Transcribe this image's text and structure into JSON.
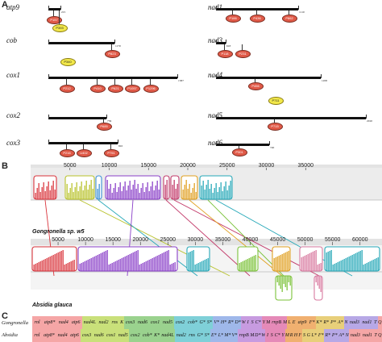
{
  "panels": {
    "a": "A",
    "b": "B",
    "c": "C"
  },
  "genes_left": [
    {
      "name": "atp9",
      "end": "215",
      "insertions": [
        {
          "label": "P157",
          "color": "red"
        },
        {
          "label": "P393",
          "color": "yellow"
        }
      ]
    },
    {
      "name": "cob",
      "end": "1170",
      "insertions": [
        {
          "label": "P823",
          "color": "red"
        },
        {
          "label": "P340",
          "color": "yellow"
        }
      ]
    },
    {
      "name": "cox1",
      "end": "1587",
      "insertions": [
        {
          "label": "P212",
          "color": "red"
        },
        {
          "label": "P410",
          "color": "red"
        },
        {
          "label": "P621",
          "color": "red"
        },
        {
          "label": "P1057",
          "color": "red"
        },
        {
          "label": "P1296",
          "color": "red"
        }
      ]
    },
    {
      "name": "cox2",
      "end": "756",
      "insertions": [
        {
          "label": "P685",
          "color": "red"
        }
      ]
    },
    {
      "name": "cox3",
      "end": "810",
      "insertions": [
        {
          "label": "P216",
          "color": "red"
        },
        {
          "label": "U402",
          "color": "red"
        },
        {
          "label": "P751",
          "color": "red"
        }
      ]
    }
  ],
  "genes_right": [
    {
      "name": "nad1",
      "end": "1110",
      "insertions": [
        {
          "label": "P166",
          "color": "red"
        },
        {
          "label": "P436",
          "color": "red"
        },
        {
          "label": "P862",
          "color": "red"
        }
      ]
    },
    {
      "name": "nad3",
      "end": "618",
      "insertions": [
        {
          "label": "P118",
          "color": "red"
        },
        {
          "label": "P231",
          "color": "red"
        }
      ]
    },
    {
      "name": "nad4",
      "end": "1458",
      "insertions": [
        {
          "label": "P456",
          "color": "red"
        },
        {
          "label": "P711",
          "color": "yellow"
        }
      ]
    },
    {
      "name": "nad5",
      "end": "2010",
      "insertions": [
        {
          "label": "P715",
          "color": "red"
        }
      ]
    },
    {
      "name": "nad6",
      "end": "720",
      "insertions": [
        {
          "label": "P301",
          "color": "red"
        }
      ]
    }
  ],
  "alignment": {
    "top_ticks": [
      "5000",
      "10000",
      "15000",
      "20000",
      "25000",
      "30000",
      "35000"
    ],
    "bottom_ticks": [
      "5000",
      "10000",
      "15000",
      "20000",
      "25000",
      "30000",
      "35000",
      "40000",
      "45000",
      "50000",
      "55000",
      "60000"
    ],
    "genome1": "Gongronella sp. w5",
    "genome2": "Absidia glauca",
    "block_colors": [
      "#d9343c",
      "#b8c22a",
      "#3a8fd6",
      "#8a3fc8",
      "#c23a6a",
      "#e0a020",
      "#7bc23a",
      "#26a8b8",
      "#d87aa0"
    ]
  },
  "gene_order": {
    "rows": [
      {
        "label": "Gongronella",
        "cells": [
          "rnl",
          "atp8*",
          "nad4",
          "atp6",
          "nad4L",
          "nad2",
          "rns",
          "K",
          "cox3",
          "nad6",
          "cox1",
          "nad5",
          "cox2",
          "cob*",
          "G*",
          "S*",
          "V*",
          "H*",
          "R*",
          "D*",
          "W",
          "I",
          "S",
          "C*",
          "Y",
          "M",
          "rnpB",
          "M",
          "L",
          "E",
          "atp9",
          "F*",
          "K*",
          "R*",
          "P*",
          "A*",
          "N",
          "nad3",
          "nad1",
          "T",
          "Q"
        ]
      },
      {
        "label": "Absidia",
        "cells": [
          "rnl",
          "atp8*",
          "nad4",
          "atp6",
          "cox3",
          "nad6",
          "cox1",
          "nad5",
          "cox2",
          "cob*",
          "K*",
          "nad4L",
          "nad2",
          "rns",
          "G*",
          "S*",
          "E*",
          "L*",
          "M*",
          "V*",
          "rnpB",
          "M",
          "D*",
          "W",
          "I",
          "S",
          "C*",
          "Y",
          "M",
          "R",
          "H",
          "F",
          "S",
          "G",
          "L*",
          "F*",
          "R*",
          "P*",
          "A*",
          "N",
          "nad3",
          "nad1",
          "T",
          "Q"
        ]
      }
    ]
  }
}
